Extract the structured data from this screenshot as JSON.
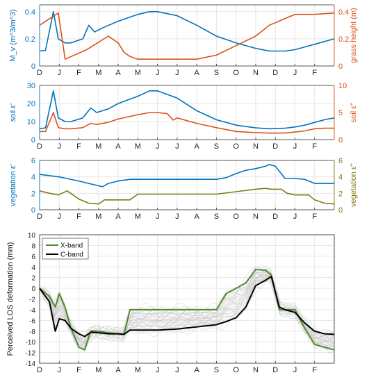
{
  "months": [
    "D",
    "J",
    "F",
    "M",
    "A",
    "M",
    "J",
    "J",
    "A",
    "S",
    "O",
    "N",
    "D",
    "J",
    "F"
  ],
  "colors": {
    "blue": "#0072bd",
    "orange": "#d95319",
    "olive": "#7e7a16",
    "green": "#4d8a2c",
    "black": "#000000",
    "gray": "#c4c4c4"
  },
  "chart_data": [
    {
      "type": "line",
      "panel": "soil-moisture-grass-height",
      "xlabel": "",
      "ylabel_left": "M_v (m^3/m^3)",
      "ylabel_right": "grass height (m)",
      "ylim_left": [
        0,
        0.45
      ],
      "yticks_left": [
        "0",
        "0.2",
        "0.4"
      ],
      "ylim_right": [
        0,
        0.45
      ],
      "yticks_right": [
        "0",
        "0.2",
        "0.4"
      ],
      "grid": true,
      "series": [
        {
          "axis": "left",
          "color": "blue",
          "x": [
            0,
            0.3,
            0.7,
            0.95,
            1.3,
            1.6,
            2.2,
            2.5,
            2.8,
            3.2,
            4,
            5,
            5.6,
            6,
            7,
            8,
            9,
            10,
            11,
            11.7,
            12.5,
            13,
            13.5,
            14,
            14.5,
            15
          ],
          "y": [
            0.11,
            0.115,
            0.4,
            0.2,
            0.17,
            0.17,
            0.2,
            0.3,
            0.25,
            0.28,
            0.33,
            0.38,
            0.4,
            0.4,
            0.37,
            0.3,
            0.22,
            0.17,
            0.13,
            0.11,
            0.11,
            0.12,
            0.14,
            0.16,
            0.18,
            0.2
          ]
        },
        {
          "axis": "right",
          "color": "orange",
          "x": [
            0,
            0.95,
            1.3,
            2.4,
            3.5,
            4,
            4.3,
            4.6,
            5,
            8,
            9,
            10,
            11,
            11.7,
            12.5,
            13,
            14,
            15
          ],
          "y": [
            0.3,
            0.39,
            0.05,
            0.12,
            0.22,
            0.17,
            0.1,
            0.07,
            0.05,
            0.05,
            0.08,
            0.15,
            0.22,
            0.3,
            0.35,
            0.38,
            0.38,
            0.39
          ]
        }
      ]
    },
    {
      "type": "line",
      "panel": "soil-permittivity",
      "xlabel": "",
      "ylabel_left": "soil ε'",
      "ylabel_right": "soil ε''",
      "ylim_left": [
        0,
        30
      ],
      "yticks_left": [
        "0",
        "10",
        "20",
        "30"
      ],
      "ylim_right": [
        0,
        10
      ],
      "yticks_right": [
        "0",
        "5",
        "10"
      ],
      "grid": true,
      "series": [
        {
          "axis": "left",
          "color": "blue",
          "x": [
            0,
            0.3,
            0.7,
            0.95,
            1.3,
            1.6,
            2.2,
            2.6,
            2.9,
            3.5,
            4,
            5,
            5.6,
            6,
            7,
            8,
            9,
            10,
            11,
            11.7,
            12.5,
            13,
            13.5,
            14,
            14.5,
            15
          ],
          "y": [
            6,
            6.5,
            27,
            12,
            10,
            10,
            12,
            17.5,
            15,
            17,
            20,
            24,
            27,
            27,
            23,
            16,
            11,
            8,
            6.5,
            6,
            6.3,
            7,
            8,
            9.5,
            11,
            12
          ]
        },
        {
          "axis": "right",
          "color": "orange",
          "x": [
            0,
            0.3,
            0.7,
            0.95,
            1.3,
            1.6,
            2.2,
            2.6,
            2.9,
            3.5,
            4,
            5,
            5.6,
            6,
            6.5,
            6.8,
            7,
            8,
            9,
            10,
            11,
            11.7,
            12.5,
            13,
            13.5,
            14,
            14.5,
            15
          ],
          "y": [
            1.5,
            1.5,
            5,
            2.2,
            2,
            2,
            2.2,
            3,
            2.8,
            3.2,
            3.8,
            4.6,
            5,
            5,
            4.8,
            3.6,
            4,
            3,
            2.2,
            1.5,
            1.3,
            1.2,
            1.2,
            1.4,
            1.6,
            2,
            2.1,
            2.1
          ]
        }
      ]
    },
    {
      "type": "line",
      "panel": "vegetation-permittivity",
      "xlabel": "",
      "ylabel_left": "vegetation ε'",
      "ylabel_right": "vegetation ε''",
      "ylim_left": [
        0,
        6
      ],
      "yticks_left": [
        "0",
        "2",
        "4",
        "6"
      ],
      "ylim_right": [
        0,
        6
      ],
      "yticks_right": [
        "0",
        "2",
        "4",
        "6"
      ],
      "grid": true,
      "series": [
        {
          "axis": "left",
          "color": "blue",
          "x": [
            0,
            1,
            2,
            3.2,
            3.5,
            4,
            4.6,
            5,
            7,
            8,
            9,
            9.5,
            10,
            10.5,
            11,
            11.5,
            11.7,
            12,
            12.5,
            13,
            13.5,
            14,
            14.5,
            15
          ],
          "y": [
            4.3,
            4.0,
            3.5,
            2.8,
            3.2,
            3.5,
            3.7,
            3.7,
            3.7,
            3.7,
            3.7,
            3.9,
            4.4,
            4.8,
            5.0,
            5.3,
            5.5,
            5.3,
            3.8,
            3.8,
            3.7,
            3.2,
            3.2,
            3.2
          ]
        },
        {
          "axis": "right",
          "color": "olive",
          "x": [
            0,
            0.5,
            0.95,
            1.4,
            1.7,
            2,
            2.5,
            3,
            3.3,
            4,
            4.3,
            4.6,
            5,
            8,
            9,
            10,
            11,
            11.5,
            11.8,
            12.3,
            12.6,
            13,
            13.4,
            13.7,
            14,
            14.5,
            15
          ],
          "y": [
            2.3,
            2.0,
            1.8,
            2.3,
            1.8,
            1.3,
            0.8,
            0.7,
            1.2,
            1.2,
            1.2,
            1.2,
            1.9,
            1.9,
            1.9,
            2.2,
            2.5,
            2.6,
            2.5,
            2.5,
            2.0,
            1.8,
            1.8,
            1.8,
            1.2,
            0.8,
            0.7
          ]
        }
      ]
    },
    {
      "type": "line",
      "panel": "los-deformation",
      "xlabel": "",
      "ylabel": "Perceived LOS deformation (mm)",
      "ylim": [
        -14,
        10
      ],
      "yticks": [
        "10",
        "8",
        "6",
        "4",
        "2",
        "0",
        "-2",
        "-4",
        "-6",
        "-8",
        "-10",
        "-12",
        "-14"
      ],
      "grid": true,
      "legend_position": "upper-left",
      "series": [
        {
          "name": "X-band",
          "color": "green",
          "x": [
            0,
            0.5,
            0.8,
            1,
            1.3,
            1.6,
            2,
            2.3,
            2.6,
            3,
            3.5,
            4,
            4.3,
            4.6,
            5,
            8,
            9,
            9.5,
            10,
            10.5,
            11,
            11.5,
            11.8,
            12.2,
            12.5,
            13,
            13.5,
            14,
            14.5,
            15
          ],
          "y": [
            0,
            -1.5,
            -3.5,
            -1,
            -3.5,
            -7.5,
            -11,
            -11.5,
            -8,
            -8,
            -8.3,
            -8.5,
            -8.6,
            -4,
            -4,
            -4,
            -4,
            -1,
            0,
            1,
            3.5,
            3.4,
            2.5,
            -4,
            -4,
            -4,
            -7.5,
            -10.5,
            -11,
            -11.5
          ]
        },
        {
          "name": "C-band",
          "color": "black",
          "x": [
            0,
            0.5,
            0.8,
            1,
            1.3,
            1.6,
            2,
            2.3,
            2.6,
            3,
            3.5,
            4,
            4.3,
            4.6,
            5,
            6,
            7,
            8,
            9,
            9.5,
            10,
            10.5,
            11,
            11.5,
            11.8,
            12.2,
            12.5,
            13,
            13.5,
            14,
            14.5,
            15
          ],
          "y": [
            0,
            -2.5,
            -8,
            -5.7,
            -6,
            -7.5,
            -8.5,
            -9,
            -8.2,
            -8.3,
            -8.5,
            -8.5,
            -8.6,
            -7.8,
            -7.8,
            -7.8,
            -7.6,
            -7.2,
            -6.8,
            -6.2,
            -5.5,
            -3.5,
            0.5,
            1.5,
            2.2,
            -3.5,
            -4,
            -4.5,
            -6.5,
            -8,
            -8.5,
            -8.6
          ]
        }
      ]
    }
  ]
}
